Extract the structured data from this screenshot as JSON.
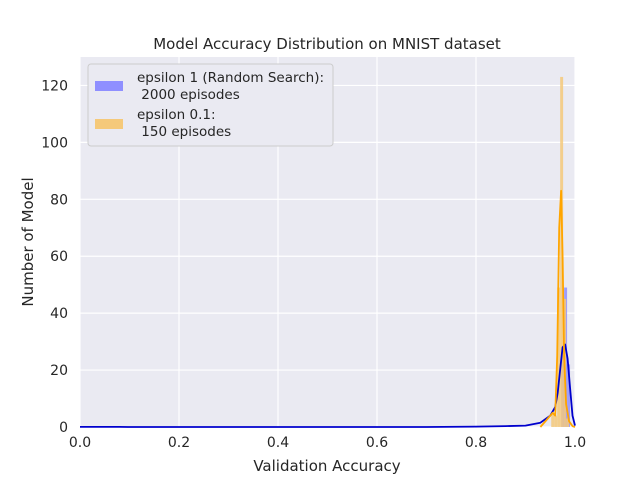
{
  "chart_data": {
    "type": "bar",
    "title": "Model Accuracy Distribution on MNIST dataset",
    "xlabel": "Validation Accuracy",
    "ylabel": "Number of Model",
    "xlim": [
      0.0,
      1.0
    ],
    "ylim": [
      0,
      130
    ],
    "xticks": [
      "0.0",
      "0.2",
      "0.4",
      "0.6",
      "0.8",
      "1.0"
    ],
    "yticks": [
      "0",
      "20",
      "40",
      "60",
      "80",
      "100",
      "120"
    ],
    "grid": true,
    "legend_position": "top-left",
    "background": "#eaeaf2",
    "series": [
      {
        "name": "epsilon 1 (Random Search):\n 2000 episodes",
        "legend_lines": [
          "epsilon 1 (Random Search):",
          " 2000 episodes"
        ],
        "bar_color": "#8f8fff",
        "kde_color": "#0000cd",
        "bins": [
          {
            "x0": 0.972,
            "x1": 0.978,
            "count": 25
          },
          {
            "x0": 0.978,
            "x1": 0.984,
            "count": 49
          },
          {
            "x0": 0.984,
            "x1": 0.99,
            "count": 22
          }
        ],
        "kde": [
          [
            0.0,
            0.05
          ],
          [
            0.08,
            0.05
          ],
          [
            0.1,
            0.0
          ],
          [
            0.7,
            0.0
          ],
          [
            0.8,
            0.15
          ],
          [
            0.86,
            0.3
          ],
          [
            0.9,
            0.5
          ],
          [
            0.93,
            1.5
          ],
          [
            0.95,
            4
          ],
          [
            0.96,
            7
          ],
          [
            0.965,
            12
          ],
          [
            0.97,
            20
          ],
          [
            0.975,
            28
          ],
          [
            0.98,
            29
          ],
          [
            0.985,
            24
          ],
          [
            0.99,
            14
          ],
          [
            0.995,
            4
          ],
          [
            1.0,
            0.5
          ]
        ]
      },
      {
        "name": "epsilon 0.1:\n 150 episodes",
        "legend_lines": [
          "epsilon 0.1:",
          " 150 episodes"
        ],
        "bar_color": "#f5c97a",
        "kde_color": "#ffa500",
        "bins": [
          {
            "x0": 0.952,
            "x1": 0.958,
            "count": 5
          },
          {
            "x0": 0.958,
            "x1": 0.964,
            "count": 4
          },
          {
            "x0": 0.964,
            "x1": 0.97,
            "count": 49
          },
          {
            "x0": 0.97,
            "x1": 0.976,
            "count": 123
          },
          {
            "x0": 0.976,
            "x1": 0.982,
            "count": 45
          },
          {
            "x0": 0.982,
            "x1": 0.988,
            "count": 3
          }
        ],
        "kde": [
          [
            0.93,
            0
          ],
          [
            0.945,
            3
          ],
          [
            0.955,
            5
          ],
          [
            0.96,
            4
          ],
          [
            0.964,
            25
          ],
          [
            0.968,
            70
          ],
          [
            0.972,
            83
          ],
          [
            0.975,
            60
          ],
          [
            0.978,
            25
          ],
          [
            0.982,
            8
          ],
          [
            0.988,
            2
          ],
          [
            0.995,
            0.3
          ],
          [
            1.0,
            0
          ]
        ]
      }
    ]
  }
}
